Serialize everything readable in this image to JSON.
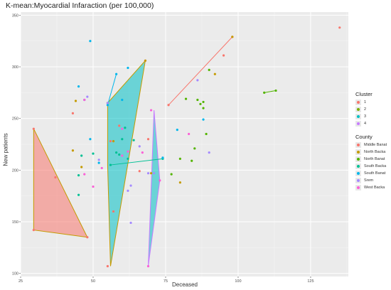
{
  "title": "K-mean:Myocardial Infaraction (per 100,000)",
  "chart_data": {
    "type": "scatter",
    "title": "K-mean:Myocardial Infaraction (per 100,000)",
    "xlabel": "Deceased",
    "ylabel": "New patients",
    "xlim": [
      25,
      138
    ],
    "ylim": [
      97,
      353
    ],
    "x_ticks": [
      25,
      50,
      75,
      100,
      125
    ],
    "y_ticks": [
      100,
      150,
      200,
      250,
      300,
      350
    ],
    "grid": true,
    "legend_position": "right",
    "cluster_legend": {
      "title": "Cluster",
      "items": [
        {
          "label": "1",
          "color": "#F8766D"
        },
        {
          "label": "2",
          "color": "#7CAE00"
        },
        {
          "label": "3",
          "color": "#00BFC4"
        },
        {
          "label": "4",
          "color": "#C77CFF"
        }
      ]
    },
    "county_legend": {
      "title": "County",
      "items": [
        {
          "label": "Middle Banat",
          "color": "#F8766D"
        },
        {
          "label": "North Backa",
          "color": "#C49A00"
        },
        {
          "label": "North Banat",
          "color": "#53B400"
        },
        {
          "label": "South Backa",
          "color": "#00C094"
        },
        {
          "label": "South Banat",
          "color": "#00B6EB"
        },
        {
          "label": "Srem",
          "color": "#A58AFF"
        },
        {
          "label": "West Backa",
          "color": "#FB61D7"
        }
      ]
    },
    "polygons": [
      {
        "cluster": "1",
        "fill": "#F8766D",
        "stroke": "#C49A00",
        "points": [
          [
            29.5,
            240
          ],
          [
            29.5,
            142
          ],
          [
            48,
            135
          ]
        ]
      },
      {
        "cluster": "3",
        "fill": "#00BFC4",
        "stroke": "#C49A00",
        "points": [
          [
            55,
            265
          ],
          [
            68,
            306
          ],
          [
            56,
            107
          ],
          [
            55,
            205
          ]
        ]
      },
      {
        "cluster": "3",
        "fill": "#00BFC4",
        "stroke": "#C77CFF",
        "points": [
          [
            71,
            258
          ],
          [
            69,
            107
          ],
          [
            73,
            190
          ]
        ]
      }
    ],
    "segments": [
      {
        "color": "#F8766D",
        "from": [
          76,
          263
        ],
        "to": [
          98,
          329
        ]
      },
      {
        "color": "#00B6EB",
        "from": [
          55,
          263
        ],
        "to": [
          58,
          293
        ]
      },
      {
        "color": "#00C094",
        "from": [
          56,
          205
        ],
        "to": [
          74,
          211
        ]
      },
      {
        "color": "#53B400",
        "from": [
          109,
          275
        ],
        "to": [
          113,
          277
        ]
      }
    ],
    "series": [
      {
        "county": "Middle Banat",
        "color": "#F8766D",
        "points": [
          [
            29.5,
            240
          ],
          [
            29.5,
            142
          ],
          [
            37,
            193
          ],
          [
            48,
            135
          ],
          [
            98,
            329
          ],
          [
            95,
            311
          ],
          [
            135,
            338
          ],
          [
            76,
            263
          ],
          [
            57,
            160
          ],
          [
            59,
            243
          ],
          [
            56,
            228
          ],
          [
            66,
            199
          ],
          [
            69,
            230
          ],
          [
            68,
            306
          ],
          [
            55,
            107
          ],
          [
            43,
            255
          ]
        ]
      },
      {
        "county": "North Backa",
        "color": "#C49A00",
        "points": [
          [
            43,
            219
          ],
          [
            44,
            267
          ],
          [
            68,
            306
          ],
          [
            55,
            265
          ],
          [
            46,
            203
          ],
          [
            57,
            228
          ],
          [
            70,
            197
          ],
          [
            92,
            293
          ],
          [
            98,
            329
          ],
          [
            80,
            188
          ]
        ]
      },
      {
        "county": "North Banat",
        "color": "#53B400",
        "points": [
          [
            82,
            269
          ],
          [
            86,
            268
          ],
          [
            88,
            266
          ],
          [
            87,
            264
          ],
          [
            90,
            297
          ],
          [
            109,
            275
          ],
          [
            113,
            277
          ],
          [
            88,
            260
          ],
          [
            85,
            221
          ],
          [
            89,
            235
          ],
          [
            80,
            211
          ],
          [
            84,
            209
          ],
          [
            77,
            196
          ]
        ]
      },
      {
        "county": "South Backa",
        "color": "#00C094",
        "points": [
          [
            46,
            214
          ],
          [
            45,
            195
          ],
          [
            45,
            176
          ],
          [
            50,
            216
          ],
          [
            58,
            217
          ],
          [
            59,
            215
          ],
          [
            62,
            211
          ],
          [
            74,
            211
          ],
          [
            56,
            205
          ],
          [
            60,
            230
          ],
          [
            64,
            229
          ],
          [
            61,
            241
          ]
        ]
      },
      {
        "county": "South Banat",
        "color": "#00B6EB",
        "points": [
          [
            49,
            325
          ],
          [
            47,
            268
          ],
          [
            45,
            281
          ],
          [
            58,
            293
          ],
          [
            55,
            263
          ],
          [
            62,
            299
          ],
          [
            49,
            230
          ],
          [
            60,
            268
          ],
          [
            79,
            239
          ],
          [
            74,
            212
          ],
          [
            88,
            249
          ],
          [
            52,
            207
          ]
        ]
      },
      {
        "county": "Srem",
        "color": "#A58AFF",
        "points": [
          [
            48,
            271
          ],
          [
            52,
            210
          ],
          [
            55,
            265
          ],
          [
            63,
            185
          ],
          [
            63,
            149
          ],
          [
            71,
            197
          ],
          [
            90,
            217
          ],
          [
            86,
            287
          ],
          [
            66,
            223
          ],
          [
            69,
            197
          ],
          [
            62,
            180
          ]
        ]
      },
      {
        "county": "West Backa",
        "color": "#FB61D7",
        "points": [
          [
            47,
            268
          ],
          [
            53,
            202
          ],
          [
            50,
            184
          ],
          [
            47,
            196
          ],
          [
            60,
            214
          ],
          [
            67,
            217
          ],
          [
            70,
            258
          ],
          [
            69,
            107
          ],
          [
            73,
            190
          ],
          [
            60,
            240
          ],
          [
            62,
            218
          ],
          [
            83,
            235
          ]
        ]
      }
    ]
  }
}
